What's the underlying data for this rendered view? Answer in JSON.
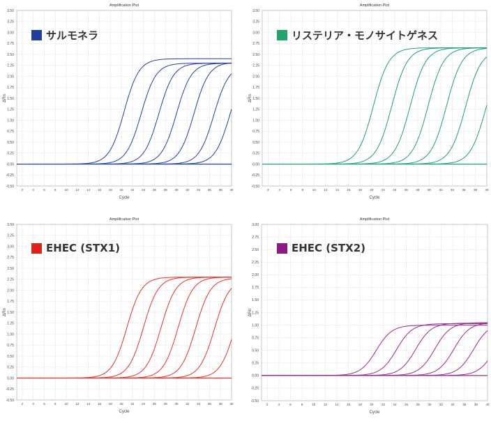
{
  "chart_data": [
    {
      "type": "line",
      "title": "Amplification Plot",
      "xlabel": "Cycle",
      "ylabel": "ΔRn",
      "legend": "Salmonella",
      "legend_label": "サルモネラ",
      "color": "#233f9e",
      "xlim": [
        1,
        40
      ],
      "ylim": [
        -0.5,
        3.5
      ],
      "xticks": [
        "2",
        "4",
        "6",
        "8",
        "10",
        "12",
        "14",
        "16",
        "18",
        "20",
        "22",
        "24",
        "26",
        "28",
        "30",
        "32",
        "34",
        "36",
        "38",
        "40"
      ],
      "yticks": [
        "-0.50",
        "-0.25",
        "0.00",
        "0.25",
        "0.50",
        "0.75",
        "1.00",
        "1.25",
        "1.50",
        "1.75",
        "2.00",
        "2.25",
        "2.50",
        "2.75",
        "3.00",
        "3.25",
        "3.50"
      ],
      "series": [
        {
          "ct": 20.5,
          "plateau": 2.4
        },
        {
          "ct": 23.6,
          "plateau": 2.3
        },
        {
          "ct": 26.8,
          "plateau": 2.3
        },
        {
          "ct": 30.0,
          "plateau": 2.3
        },
        {
          "ct": 33.2,
          "plateau": 2.32
        },
        {
          "ct": 36.8,
          "plateau": 2.25
        },
        {
          "ct": 39.7,
          "plateau": 2.25
        }
      ]
    },
    {
      "type": "line",
      "title": "Amplification Plot",
      "xlabel": "Cycle",
      "ylabel": "ΔRn",
      "legend": "Listeria monocytogenes",
      "legend_label": "リステリア・モノサイトゲネス",
      "color": "#1f9e7c",
      "legend_color": "#24a36a",
      "xlim": [
        1,
        40
      ],
      "ylim": [
        -0.5,
        3.5
      ],
      "xticks": [
        "2",
        "4",
        "6",
        "8",
        "10",
        "12",
        "14",
        "16",
        "18",
        "20",
        "22",
        "24",
        "26",
        "28",
        "30",
        "32",
        "34",
        "36",
        "38",
        "40"
      ],
      "yticks": [
        "-0.50",
        "-0.25",
        "0.00",
        "0.25",
        "0.50",
        "0.75",
        "1.00",
        "1.25",
        "1.50",
        "1.75",
        "2.00",
        "2.25",
        "2.50",
        "2.75",
        "3.00",
        "3.25",
        "3.50"
      ],
      "series": [
        {
          "ct": 20.3,
          "plateau": 2.65
        },
        {
          "ct": 23.5,
          "plateau": 2.65
        },
        {
          "ct": 26.7,
          "plateau": 2.65
        },
        {
          "ct": 29.8,
          "plateau": 2.65
        },
        {
          "ct": 33.0,
          "plateau": 2.65
        },
        {
          "ct": 36.3,
          "plateau": 2.6
        },
        {
          "ct": 39.8,
          "plateau": 2.5
        }
      ]
    },
    {
      "type": "line",
      "title": "Amplification Plot",
      "xlabel": "Cycle",
      "ylabel": "ΔRn",
      "legend": "EHEC (STX1)",
      "legend_label": "EHEC (STX1)",
      "color": "#e8302a",
      "legend_color": "#e0201a",
      "xlim": [
        1,
        40
      ],
      "ylim": [
        -0.5,
        3.5
      ],
      "xticks": [
        "2",
        "4",
        "6",
        "8",
        "10",
        "12",
        "14",
        "16",
        "18",
        "20",
        "22",
        "24",
        "26",
        "28",
        "30",
        "32",
        "34",
        "36",
        "38",
        "40"
      ],
      "yticks": [
        "-0.50",
        "-0.25",
        "0.00",
        "0.25",
        "0.50",
        "0.75",
        "1.00",
        "1.25",
        "1.50",
        "1.75",
        "2.00",
        "2.25",
        "2.50",
        "2.75",
        "3.00",
        "3.25",
        "3.50"
      ],
      "series": [
        {
          "ct": 21.0,
          "plateau": 2.3
        },
        {
          "ct": 24.0,
          "plateau": 2.3
        },
        {
          "ct": 27.2,
          "plateau": 2.3
        },
        {
          "ct": 30.3,
          "plateau": 2.3
        },
        {
          "ct": 33.5,
          "plateau": 2.28
        },
        {
          "ct": 36.9,
          "plateau": 2.25
        },
        {
          "ct": 40.6,
          "plateau": 2.25
        }
      ]
    },
    {
      "type": "line",
      "title": "Amplification Plot",
      "xlabel": "Cycle",
      "ylabel": "ΔRn",
      "legend": "EHEC (STX2)",
      "legend_label": "EHEC (STX2)",
      "color": "#9a2a8e",
      "legend_color": "#8e1a80",
      "xlim": [
        1,
        40
      ],
      "ylim": [
        -0.5,
        3.0
      ],
      "xticks": [
        "2",
        "4",
        "6",
        "8",
        "10",
        "12",
        "14",
        "16",
        "18",
        "20",
        "22",
        "24",
        "26",
        "28",
        "30",
        "32",
        "34",
        "36",
        "38",
        "40"
      ],
      "yticks": [
        "-0.50",
        "-0.25",
        "0.00",
        "0.25",
        "0.50",
        "0.75",
        "1.00",
        "1.25",
        "1.50",
        "1.75",
        "2.00",
        "2.25",
        "2.50",
        "2.75",
        "3.00"
      ],
      "series": [
        {
          "ct": 20.8,
          "plateau": 1.0
        },
        {
          "ct": 24.3,
          "plateau": 1.03
        },
        {
          "ct": 27.6,
          "plateau": 1.04
        },
        {
          "ct": 30.9,
          "plateau": 1.05
        },
        {
          "ct": 34.2,
          "plateau": 1.05
        },
        {
          "ct": 37.6,
          "plateau": 1.04
        },
        {
          "ct": 41.2,
          "plateau": 1.0
        }
      ]
    }
  ]
}
